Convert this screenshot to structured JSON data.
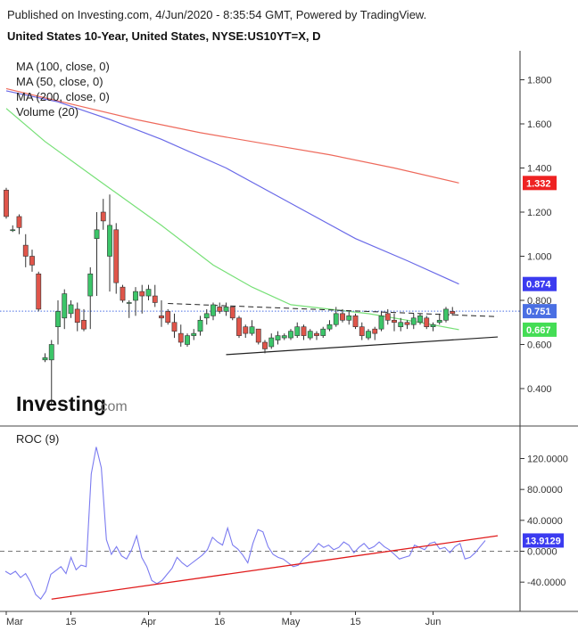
{
  "header": {
    "published": "Published on Investing.com, 4/Jun/2020 - 8:35:54 GMT, Powered by TradingView.",
    "title": "United States 10-Year, United States, NYSE:US10YT=X, D"
  },
  "logo": {
    "main": "Investing",
    "suffix": ".com"
  },
  "colors": {
    "up": "#26a69a",
    "up_fill": "#3cc569",
    "down": "#e0554a",
    "ma100": "#6a6ae8",
    "ma50": "#77e077",
    "ma200": "#ee6a5c",
    "roc": "#7b7bf0",
    "trend": "#e01b1b",
    "last_price": "#4a6fe3"
  },
  "chart_data": [
    {
      "type": "candlestick",
      "title": "United States 10-Year, United States, NYSE:US10YT=X, D",
      "legend": [
        "MA (100, close, 0)",
        "MA (50, close, 0)",
        "MA (200, close, 0)",
        "Volume (20)"
      ],
      "legend_position": "top-left",
      "ylim": [
        0.24,
        1.92
      ],
      "y_ticks": [
        0.4,
        0.6,
        0.8,
        1.0,
        1.2,
        1.4,
        1.6,
        1.8
      ],
      "y_tick_labels": [
        "0.400",
        "0.600",
        "0.800",
        "1.000",
        "1.200",
        "1.400",
        "1.600",
        "1.800"
      ],
      "x_labels": [
        {
          "label": "Mar",
          "index": 0
        },
        {
          "label": "15",
          "index": 10
        },
        {
          "label": "Apr",
          "index": 22
        },
        {
          "label": "16",
          "index": 33
        },
        {
          "label": "May",
          "index": 44
        },
        {
          "label": "15",
          "index": 54
        },
        {
          "label": "Jun",
          "index": 66
        }
      ],
      "n_slots": 78,
      "candles": [
        [
          1.3,
          1.31,
          1.17,
          1.18
        ],
        [
          1.12,
          1.14,
          1.11,
          1.12
        ],
        [
          1.18,
          1.19,
          1.1,
          1.13
        ],
        [
          1.05,
          1.1,
          0.95,
          1.0
        ],
        [
          1.0,
          1.03,
          0.93,
          0.96
        ],
        [
          0.92,
          0.93,
          0.75,
          0.76
        ],
        [
          0.53,
          0.56,
          0.52,
          0.54
        ],
        [
          0.53,
          0.62,
          0.33,
          0.6
        ],
        [
          0.68,
          0.8,
          0.6,
          0.75
        ],
        [
          0.72,
          0.85,
          0.67,
          0.83
        ],
        [
          0.74,
          0.8,
          0.72,
          0.78
        ],
        [
          0.76,
          0.79,
          0.66,
          0.7
        ],
        [
          0.71,
          0.76,
          0.66,
          0.67
        ],
        [
          0.82,
          0.95,
          0.67,
          0.92
        ],
        [
          1.08,
          1.2,
          0.82,
          1.12
        ],
        [
          1.2,
          1.26,
          1.12,
          1.16
        ],
        [
          1.0,
          1.28,
          0.84,
          1.14
        ],
        [
          1.12,
          1.15,
          0.83,
          0.88
        ],
        [
          0.86,
          0.87,
          0.79,
          0.8
        ],
        [
          0.79,
          0.8,
          0.72,
          0.79
        ],
        [
          0.8,
          0.86,
          0.73,
          0.84
        ],
        [
          0.84,
          0.87,
          0.74,
          0.82
        ],
        [
          0.82,
          0.87,
          0.8,
          0.85
        ],
        [
          0.82,
          0.87,
          0.77,
          0.79
        ],
        [
          0.73,
          0.8,
          0.68,
          0.72
        ],
        [
          0.75,
          0.76,
          0.69,
          0.7
        ],
        [
          0.7,
          0.74,
          0.63,
          0.66
        ],
        [
          0.65,
          0.69,
          0.59,
          0.61
        ],
        [
          0.6,
          0.65,
          0.59,
          0.64
        ],
        [
          0.64,
          0.67,
          0.62,
          0.65
        ],
        [
          0.66,
          0.73,
          0.64,
          0.71
        ],
        [
          0.72,
          0.76,
          0.69,
          0.74
        ],
        [
          0.73,
          0.79,
          0.71,
          0.78
        ],
        [
          0.77,
          0.79,
          0.74,
          0.75
        ],
        [
          0.75,
          0.79,
          0.73,
          0.77
        ],
        [
          0.77,
          0.77,
          0.71,
          0.72
        ],
        [
          0.72,
          0.73,
          0.63,
          0.64
        ],
        [
          0.68,
          0.69,
          0.63,
          0.65
        ],
        [
          0.65,
          0.71,
          0.64,
          0.68
        ],
        [
          0.67,
          0.67,
          0.6,
          0.61
        ],
        [
          0.61,
          0.62,
          0.56,
          0.58
        ],
        [
          0.59,
          0.65,
          0.58,
          0.63
        ],
        [
          0.62,
          0.66,
          0.6,
          0.64
        ],
        [
          0.63,
          0.65,
          0.62,
          0.64
        ],
        [
          0.63,
          0.67,
          0.62,
          0.66
        ],
        [
          0.64,
          0.7,
          0.63,
          0.68
        ],
        [
          0.68,
          0.69,
          0.62,
          0.64
        ],
        [
          0.63,
          0.67,
          0.62,
          0.66
        ],
        [
          0.65,
          0.66,
          0.62,
          0.64
        ],
        [
          0.64,
          0.68,
          0.63,
          0.67
        ],
        [
          0.67,
          0.71,
          0.66,
          0.69
        ],
        [
          0.69,
          0.77,
          0.68,
          0.74
        ],
        [
          0.74,
          0.76,
          0.7,
          0.71
        ],
        [
          0.71,
          0.75,
          0.69,
          0.73
        ],
        [
          0.73,
          0.74,
          0.67,
          0.68
        ],
        [
          0.68,
          0.7,
          0.62,
          0.64
        ],
        [
          0.63,
          0.67,
          0.62,
          0.66
        ],
        [
          0.67,
          0.68,
          0.62,
          0.65
        ],
        [
          0.67,
          0.75,
          0.66,
          0.73
        ],
        [
          0.74,
          0.76,
          0.69,
          0.71
        ],
        [
          0.71,
          0.74,
          0.66,
          0.7
        ],
        [
          0.68,
          0.72,
          0.66,
          0.7
        ],
        [
          0.7,
          0.71,
          0.67,
          0.69
        ],
        [
          0.69,
          0.74,
          0.67,
          0.72
        ],
        [
          0.7,
          0.74,
          0.69,
          0.73
        ],
        [
          0.72,
          0.73,
          0.67,
          0.68
        ],
        [
          0.68,
          0.7,
          0.66,
          0.69
        ],
        [
          0.7,
          0.74,
          0.69,
          0.71
        ],
        [
          0.71,
          0.77,
          0.7,
          0.76
        ],
        [
          0.75,
          0.77,
          0.73,
          0.74
        ]
      ],
      "ma100": [
        [
          0,
          1.75
        ],
        [
          8,
          1.7
        ],
        [
          16,
          1.62
        ],
        [
          24,
          1.53
        ],
        [
          34,
          1.4
        ],
        [
          44,
          1.24
        ],
        [
          54,
          1.08
        ],
        [
          62,
          0.98
        ],
        [
          70,
          0.874
        ]
      ],
      "ma50": [
        [
          0,
          1.67
        ],
        [
          6,
          1.52
        ],
        [
          14,
          1.35
        ],
        [
          24,
          1.14
        ],
        [
          32,
          0.96
        ],
        [
          38,
          0.86
        ],
        [
          44,
          0.78
        ],
        [
          50,
          0.76
        ],
        [
          56,
          0.74
        ],
        [
          64,
          0.7
        ],
        [
          70,
          0.667
        ]
      ],
      "ma200": [
        [
          0,
          1.76
        ],
        [
          10,
          1.69
        ],
        [
          20,
          1.62
        ],
        [
          30,
          1.56
        ],
        [
          40,
          1.51
        ],
        [
          50,
          1.46
        ],
        [
          60,
          1.4
        ],
        [
          70,
          1.332
        ]
      ],
      "dashed_resistance": [
        [
          25,
          0.786
        ],
        [
          76,
          0.726
        ]
      ],
      "support_line": [
        [
          34,
          0.554
        ],
        [
          76,
          0.634
        ]
      ],
      "last_price_line": 0.751,
      "badges": [
        {
          "label": "1.332",
          "value": 1.332,
          "color": "#ee2222"
        },
        {
          "label": "0.874",
          "value": 0.874,
          "color": "#3b3bf0"
        },
        {
          "label": "0.751",
          "value": 0.751,
          "color": "#4a6fe3"
        },
        {
          "label": "0.667",
          "value": 0.667,
          "color": "#44dd55"
        }
      ]
    },
    {
      "type": "line",
      "title": "ROC (9)",
      "ylim": [
        -68,
        158
      ],
      "y_ticks": [
        -40,
        0,
        40,
        80,
        120
      ],
      "y_tick_labels": [
        "-40.0000",
        "0.0000",
        "40.0000",
        "80.0000",
        "120.0000"
      ],
      "zero_line": 0,
      "series": [
        {
          "name": "ROC (9)",
          "values": [
            -26,
            -30,
            -26,
            -34,
            -29,
            -40,
            -56,
            -62,
            -52,
            -30,
            -25,
            -20,
            -29,
            -8,
            -24,
            -18,
            -20,
            100,
            135,
            108,
            15,
            -4,
            6,
            -6,
            -10,
            2,
            20,
            -8,
            -20,
            -38,
            -42,
            -38,
            -30,
            -22,
            -8,
            -15,
            -20,
            -15,
            -10,
            -5,
            2,
            18,
            12,
            8,
            30,
            8,
            3,
            -5,
            -15,
            10,
            28,
            25,
            6,
            -4,
            -8,
            -10,
            -15,
            -20,
            -18,
            -10,
            -5,
            2,
            10,
            5,
            8,
            2,
            5,
            12,
            8,
            -2,
            5,
            10,
            3,
            6,
            12,
            6,
            2,
            -4,
            -10,
            -8,
            -6,
            8,
            5,
            2,
            10,
            12,
            3,
            5,
            -2,
            6,
            10,
            -10,
            -8,
            -2,
            6,
            13.9
          ]
        }
      ],
      "trend_line": [
        [
          7,
          -62
        ],
        [
          76,
          20
        ]
      ],
      "badge": {
        "label": "13.9129",
        "value": 13.9129,
        "color": "#3b3bf0"
      }
    }
  ]
}
